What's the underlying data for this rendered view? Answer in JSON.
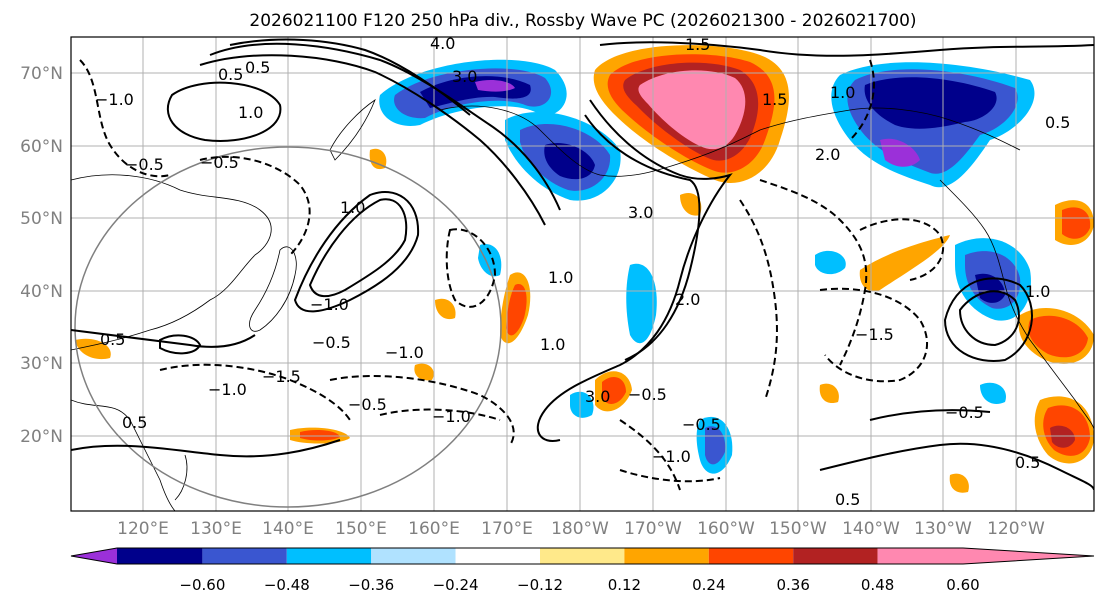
{
  "title": "2026021100 F120 250 hPa div., Rossby Wave PC (2026021300 - 2026021700)",
  "lat_labels": [
    "70°N",
    "60°N",
    "50°N",
    "40°N",
    "30°N",
    "20°N"
  ],
  "lon_labels": [
    "120°E",
    "130°E",
    "140°E",
    "150°E",
    "160°E",
    "170°E",
    "180°W",
    "170°W",
    "160°W",
    "150°W",
    "140°W",
    "130°W",
    "120°W"
  ],
  "colorbar": {
    "colors": [
      "#9b30d9",
      "#00008b",
      "#3a56d0",
      "#00bfff",
      "#b0e2ff",
      "#ffffff",
      "#ffe98a",
      "#ffa500",
      "#ff4500",
      "#b22222",
      "#ff88b0"
    ],
    "ticks": [
      "−0.60",
      "−0.48",
      "−0.36",
      "−0.24",
      "−0.12",
      "0.12",
      "0.24",
      "0.36",
      "0.48",
      "0.60"
    ]
  },
  "contour_labels": [
    "4.0",
    "3.0",
    "3.0",
    "1.5",
    "1.5",
    "1.0",
    "1.0",
    "1.0",
    "1.0",
    "1.0",
    "0.5",
    "0.5",
    "0.5",
    "0.5",
    "0.5",
    "−1.0",
    "−1.0",
    "−1.0",
    "−1.0",
    "−1.0",
    "−1.0",
    "−1.5",
    "−1.5",
    "−0.5",
    "−0.5",
    "−0.5",
    "−0.5",
    "−0.5",
    "−0.5",
    "−0.5",
    "2.0",
    "2.0",
    "3.0",
    "1.0",
    "0.5",
    "0.5"
  ]
}
